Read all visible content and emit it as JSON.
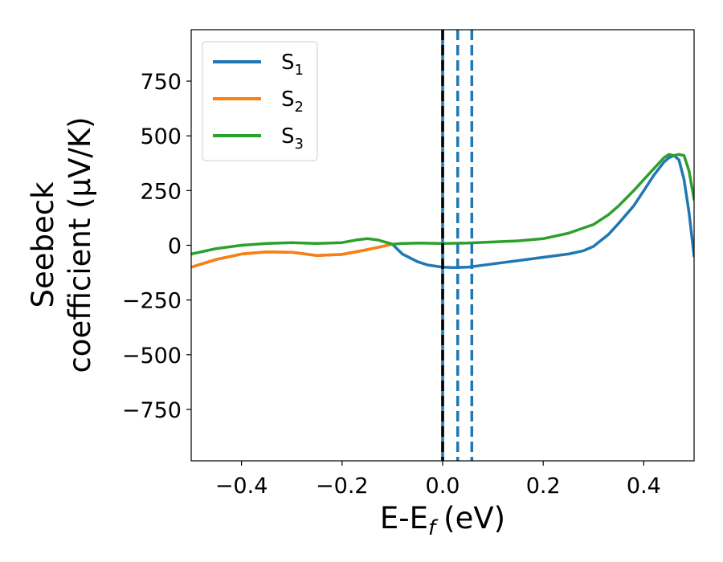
{
  "chart_data": {
    "type": "line",
    "xlabel": "E-E",
    "xlabel_sub": "f",
    "xlabel_unit": "(eV)",
    "ylabel_line1": "Seebeck",
    "ylabel_line2": "coefficient  (μV/K)",
    "xlim": [
      -0.5,
      0.5
    ],
    "ylim": [
      -985,
      985
    ],
    "xticks": [
      -0.4,
      -0.2,
      0.0,
      0.2,
      0.4
    ],
    "xtick_labels": [
      "−0.4",
      "−0.2",
      "0.0",
      "0.2",
      "0.4"
    ],
    "yticks": [
      -750,
      -500,
      -250,
      0,
      250,
      500,
      750
    ],
    "ytick_labels": [
      "−750",
      "−500",
      "−250",
      "0",
      "250",
      "500",
      "750"
    ],
    "grid": false,
    "legend_placement": "top-left",
    "series": [
      {
        "name": "S1",
        "name_base": "S",
        "name_sub": "1",
        "color": "#1f77b4",
        "x": [
          -0.5,
          -0.45,
          -0.4,
          -0.35,
          -0.3,
          -0.25,
          -0.2,
          -0.15,
          -0.12,
          -0.1,
          -0.08,
          -0.05,
          -0.03,
          0.0,
          0.02,
          0.05,
          0.1,
          0.15,
          0.2,
          0.25,
          0.28,
          0.3,
          0.33,
          0.35,
          0.38,
          0.4,
          0.42,
          0.44,
          0.45,
          0.46,
          0.47,
          0.48,
          0.49,
          0.5
        ],
        "y": [
          -100,
          -65,
          -40,
          -30,
          -32,
          -47,
          -42,
          -20,
          -5,
          5,
          -40,
          -75,
          -90,
          -100,
          -102,
          -100,
          -85,
          -70,
          -55,
          -40,
          -25,
          -5,
          50,
          100,
          180,
          250,
          320,
          380,
          400,
          410,
          390,
          300,
          150,
          -50
        ]
      },
      {
        "name": "S2",
        "name_base": "S",
        "name_sub": "2",
        "color": "#ff7f0e",
        "x": [
          -0.5,
          -0.45,
          -0.4,
          -0.35,
          -0.3,
          -0.25,
          -0.2,
          -0.15,
          -0.12,
          -0.1
        ],
        "y": [
          -100,
          -65,
          -40,
          -30,
          -32,
          -47,
          -42,
          -20,
          -5,
          5
        ]
      },
      {
        "name": "S3",
        "name_base": "S",
        "name_sub": "3",
        "color": "#2ca02c",
        "x": [
          -0.5,
          -0.45,
          -0.4,
          -0.35,
          -0.3,
          -0.25,
          -0.2,
          -0.17,
          -0.15,
          -0.13,
          -0.1,
          -0.08,
          -0.05,
          0.0,
          0.05,
          0.1,
          0.15,
          0.2,
          0.25,
          0.3,
          0.33,
          0.35,
          0.38,
          0.4,
          0.42,
          0.44,
          0.45,
          0.46,
          0.47,
          0.48,
          0.49,
          0.5
        ],
        "y": [
          -40,
          -15,
          0,
          8,
          12,
          8,
          12,
          25,
          30,
          25,
          5,
          8,
          10,
          8,
          10,
          15,
          20,
          30,
          55,
          95,
          140,
          180,
          250,
          300,
          350,
          400,
          415,
          410,
          415,
          410,
          340,
          210
        ]
      }
    ],
    "vlines": [
      {
        "x": 0.0,
        "color": "#1f77b4",
        "style": "solid"
      },
      {
        "x": 0.0,
        "color": "#000000",
        "style": "dashed"
      },
      {
        "x": 0.03,
        "color": "#1f77b4",
        "style": "dashed"
      },
      {
        "x": 0.058,
        "color": "#1f77b4",
        "style": "dashed"
      }
    ]
  }
}
